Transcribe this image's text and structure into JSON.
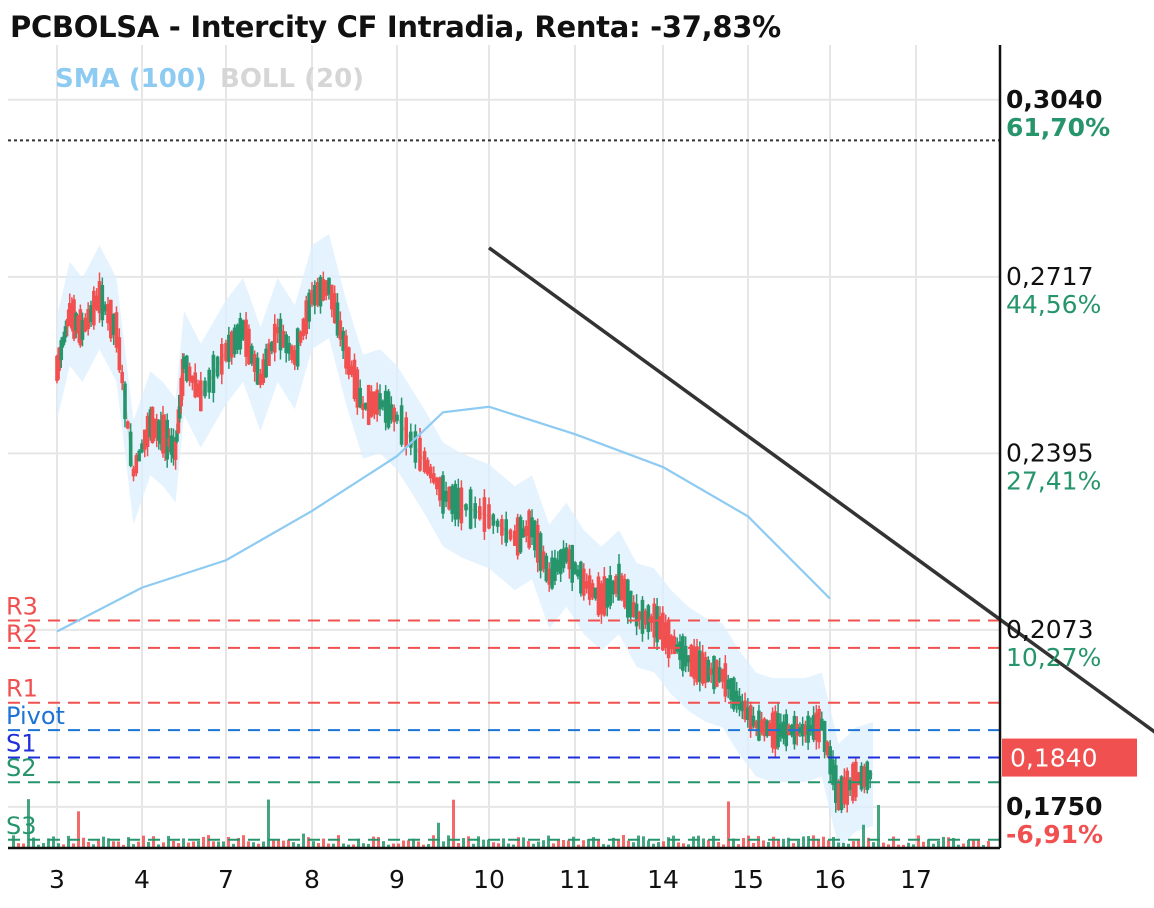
{
  "chart_data": {
    "type": "candlestick",
    "title": "PCBOLSA - Intercity CF Intradia, Renta: -37,83%",
    "indicators": [
      {
        "label": "SMA (100)",
        "color": "#8ecbf2"
      },
      {
        "label": "BOLL (20)",
        "color": "#d6d6d6"
      }
    ],
    "x_tick_labels": [
      "3",
      "4",
      "7",
      "8",
      "9",
      "10",
      "11",
      "14",
      "15",
      "16",
      "17"
    ],
    "y_axis": {
      "range": [
        0.1675,
        0.314
      ],
      "ticks": [
        {
          "price": 0.304,
          "price_label": "0,3040",
          "pct_label": "61,70%",
          "bold": true
        },
        {
          "price": 0.2717,
          "price_label": "0,2717",
          "pct_label": "44,56%",
          "bold": false
        },
        {
          "price": 0.2395,
          "price_label": "0,2395",
          "pct_label": "27,41%",
          "bold": false
        },
        {
          "price": 0.2073,
          "price_label": "0,2073",
          "pct_label": "10,27%",
          "bold": false
        },
        {
          "price": 0.175,
          "price_label": "0,1750",
          "pct_label": "-6,91%",
          "bold": true
        }
      ]
    },
    "current_price": {
      "value": 0.184,
      "label": "0,1840",
      "color": "#f0504f"
    },
    "reference_high": 0.2966,
    "levels": [
      {
        "name": "R3",
        "value": 0.209,
        "color": "#f0504f"
      },
      {
        "name": "R2",
        "value": 0.204,
        "color": "#f0504f"
      },
      {
        "name": "R1",
        "value": 0.194,
        "color": "#f0504f"
      },
      {
        "name": "Pivot",
        "value": 0.189,
        "color": "#1e74d6"
      },
      {
        "name": "S1",
        "value": 0.184,
        "color": "#1f2fd9"
      },
      {
        "name": "S2",
        "value": 0.1795,
        "color": "#26956b"
      },
      {
        "name": "S3",
        "value": 0.169,
        "color": "#26956b"
      }
    ],
    "trendline": {
      "from": [
        8,
        0.277
      ],
      "to": [
        17.5,
        0.169
      ]
    },
    "price_path": [
      [
        3,
        0.255
      ],
      [
        3.15,
        0.265
      ],
      [
        3.3,
        0.262
      ],
      [
        3.5,
        0.268
      ],
      [
        3.7,
        0.262
      ],
      [
        3.9,
        0.236
      ],
      [
        4.1,
        0.245
      ],
      [
        4.25,
        0.243
      ],
      [
        4.4,
        0.24
      ],
      [
        4.5,
        0.256
      ],
      [
        4.7,
        0.25
      ],
      [
        5.0,
        0.258
      ],
      [
        5.2,
        0.262
      ],
      [
        5.4,
        0.253
      ],
      [
        5.6,
        0.262
      ],
      [
        5.8,
        0.257
      ],
      [
        6.0,
        0.268
      ],
      [
        6.2,
        0.27
      ],
      [
        6.4,
        0.258
      ],
      [
        6.6,
        0.248
      ],
      [
        6.8,
        0.249
      ],
      [
        7.0,
        0.246
      ],
      [
        7.3,
        0.238
      ],
      [
        7.5,
        0.232
      ],
      [
        7.7,
        0.23
      ],
      [
        8.0,
        0.228
      ],
      [
        8.3,
        0.224
      ],
      [
        8.5,
        0.226
      ],
      [
        8.7,
        0.217
      ],
      [
        8.9,
        0.221
      ],
      [
        9.1,
        0.216
      ],
      [
        9.3,
        0.213
      ],
      [
        9.5,
        0.216
      ],
      [
        9.7,
        0.21
      ],
      [
        9.9,
        0.209
      ],
      [
        10.1,
        0.205
      ],
      [
        10.3,
        0.202
      ],
      [
        10.5,
        0.2
      ],
      [
        10.7,
        0.199
      ],
      [
        10.9,
        0.194
      ],
      [
        11.1,
        0.19
      ],
      [
        11.3,
        0.189
      ],
      [
        11.5,
        0.189
      ],
      [
        11.7,
        0.189
      ],
      [
        11.9,
        0.19
      ],
      [
        12.1,
        0.177
      ],
      [
        12.3,
        0.18
      ],
      [
        12.5,
        0.181
      ]
    ]
  }
}
